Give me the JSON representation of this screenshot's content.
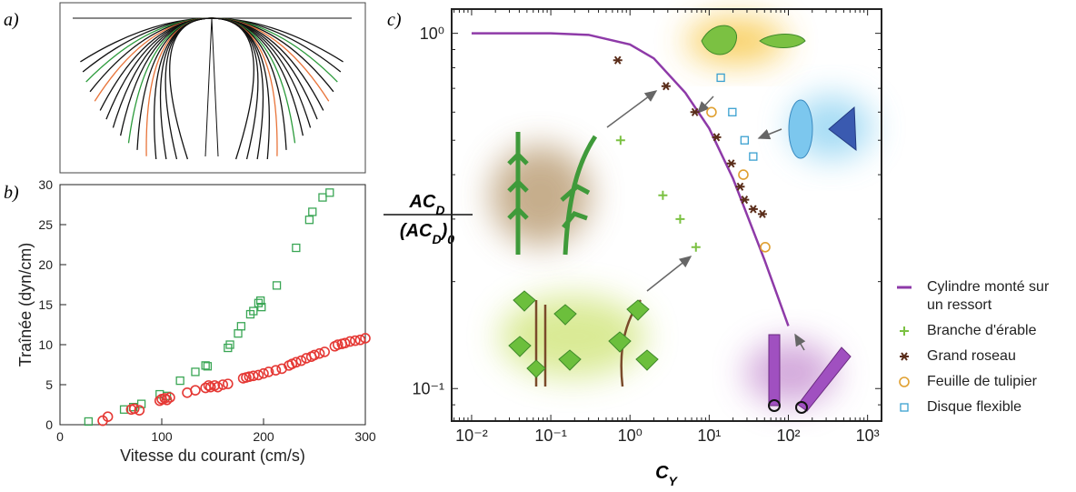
{
  "chart_data": [
    {
      "type": "illustration",
      "panel_label": "a)"
    },
    {
      "type": "scatter",
      "panel_label": "b)",
      "xlabel": "Vitesse du courant (cm/s)",
      "ylabel": "Traînée (dyn/cm)",
      "xlim": [
        0,
        300
      ],
      "ylim": [
        0,
        30
      ],
      "xticks": [
        0,
        100,
        200,
        300
      ],
      "yticks": [
        0,
        5,
        10,
        15,
        20,
        25,
        30
      ],
      "series": [
        {
          "color": "#3aa655",
          "marker": "square",
          "x": [
            28,
            63,
            72,
            80,
            98,
            105,
            118,
            133,
            143,
            145,
            165,
            167,
            175,
            178,
            187,
            190,
            195,
            197,
            198,
            213,
            232,
            245,
            248,
            258,
            265
          ],
          "values": [
            0.4,
            1.9,
            2.2,
            2.6,
            3.8,
            3.6,
            5.5,
            6.6,
            7.4,
            7.3,
            9.6,
            10.0,
            11.4,
            12.3,
            13.8,
            14.2,
            15.2,
            15.5,
            14.7,
            17.4,
            22.1,
            25.6,
            26.6,
            28.4,
            29.0
          ]
        },
        {
          "color": "#e53935",
          "marker": "circle",
          "x": [
            42,
            47,
            70,
            73,
            78,
            98,
            100,
            103,
            105,
            108,
            125,
            133,
            143,
            146,
            148,
            152,
            155,
            160,
            165,
            180,
            183,
            186,
            190,
            195,
            200,
            205,
            212,
            218,
            225,
            228,
            232,
            237,
            242,
            247,
            250,
            255,
            260,
            270,
            273,
            277,
            280,
            285,
            290,
            295,
            300
          ],
          "values": [
            0.5,
            1.0,
            1.9,
            2.0,
            1.8,
            3.0,
            3.2,
            3.3,
            3.1,
            3.4,
            4.0,
            4.3,
            4.6,
            4.9,
            4.7,
            4.9,
            4.7,
            5.0,
            5.1,
            5.8,
            5.9,
            6.0,
            6.1,
            6.2,
            6.4,
            6.6,
            6.8,
            7.0,
            7.4,
            7.6,
            7.8,
            8.0,
            8.3,
            8.5,
            8.7,
            8.9,
            9.1,
            9.8,
            10.0,
            10.1,
            10.2,
            10.4,
            10.5,
            10.6,
            10.8
          ]
        }
      ]
    },
    {
      "type": "scatter",
      "panel_label": "c)",
      "log_x": true,
      "log_y": true,
      "xlabel": {
        "main": "C",
        "sub": "Y"
      },
      "ylabel": {
        "numerator": [
          "AC",
          "D"
        ],
        "denominator": [
          "(AC",
          "D",
          ")",
          "0"
        ]
      },
      "xlim": [
        0.0056,
        1500
      ],
      "ylim": [
        0.081,
        1.17
      ],
      "xticks": [
        {
          "value": 0.01,
          "label": "10⁻²"
        },
        {
          "value": 0.1,
          "label": "10⁻¹"
        },
        {
          "value": 1,
          "label": "10⁰"
        },
        {
          "value": 10,
          "label": "10¹"
        },
        {
          "value": 100,
          "label": "10²"
        },
        {
          "value": 1000,
          "label": "10³"
        }
      ],
      "yticks": [
        {
          "value": 0.1,
          "label": "10⁻¹"
        },
        {
          "value": 1,
          "label": "10⁰"
        }
      ],
      "series": [
        {
          "name": "Cylindre monté sur un ressort",
          "color": "#8e3aa8",
          "marker": "line",
          "x": [
            0.01,
            0.1,
            0.3,
            1,
            2,
            5,
            10,
            20,
            50,
            100
          ],
          "values": [
            1,
            1,
            0.99,
            0.93,
            0.85,
            0.68,
            0.54,
            0.39,
            0.23,
            0.15
          ]
        },
        {
          "name": "Branche d'érable",
          "color": "#7bc142",
          "marker": "plus",
          "x": [
            0.76,
            2.6,
            4.3,
            6.8
          ],
          "values": [
            0.5,
            0.35,
            0.3,
            0.25
          ]
        },
        {
          "name": "Grand roseau",
          "color": "#5a2d1a",
          "marker": "star",
          "x": [
            0.7,
            2.85,
            6.6,
            12.4,
            19,
            24.6,
            28,
            36,
            47
          ],
          "values": [
            0.84,
            0.71,
            0.6,
            0.51,
            0.43,
            0.37,
            0.34,
            0.32,
            0.31
          ]
        },
        {
          "name": "Feuille de tulipier",
          "color": "#e0a030",
          "marker": "circle",
          "x": [
            10.7,
            27,
            51
          ],
          "values": [
            0.6,
            0.4,
            0.25
          ]
        },
        {
          "name": "Disque flexible",
          "color": "#3aa0d0",
          "marker": "square",
          "x": [
            14,
            19.6,
            28,
            36
          ],
          "values": [
            0.75,
            0.6,
            0.5,
            0.45
          ]
        }
      ]
    }
  ]
}
